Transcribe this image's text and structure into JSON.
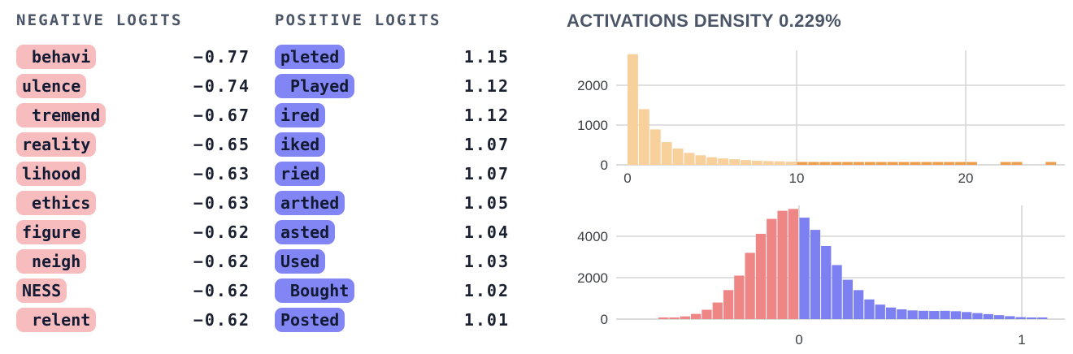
{
  "negative_logits": {
    "header": "NEGATIVE LOGITS",
    "items": [
      {
        "token": " behavi",
        "value": "−0.77"
      },
      {
        "token": "ulence",
        "value": "−0.74"
      },
      {
        "token": " tremend",
        "value": "−0.67"
      },
      {
        "token": "reality",
        "value": "−0.65"
      },
      {
        "token": "lihood",
        "value": "−0.63"
      },
      {
        "token": " ethics",
        "value": "−0.63"
      },
      {
        "token": "figure",
        "value": "−0.62"
      },
      {
        "token": " neigh",
        "value": "−0.62"
      },
      {
        "token": "NESS",
        "value": "−0.62"
      },
      {
        "token": " relent",
        "value": "−0.62"
      }
    ]
  },
  "positive_logits": {
    "header": "POSITIVE LOGITS",
    "items": [
      {
        "token": "pleted",
        "value": "1.15"
      },
      {
        "token": " Played",
        "value": "1.12"
      },
      {
        "token": "ired",
        "value": "1.12"
      },
      {
        "token": "iked",
        "value": "1.07"
      },
      {
        "token": "ried",
        "value": "1.07"
      },
      {
        "token": "arthed",
        "value": "1.05"
      },
      {
        "token": "asted",
        "value": "1.04"
      },
      {
        "token": "Used",
        "value": "1.03"
      },
      {
        "token": " Bought",
        "value": "1.02"
      },
      {
        "token": "Posted",
        "value": "1.01"
      }
    ]
  },
  "activations": {
    "title": "ACTIVATIONS DENSITY 0.229%"
  },
  "colors": {
    "header_text": "#4a5568",
    "token_text": "#121b33",
    "value_text": "#1b2130",
    "negative_pill_bg": "#f6bcbe",
    "positive_pill_bg": "#8285f4",
    "hist_tan": "#f8d09b",
    "hist_orange_tail": "#ef9d4b",
    "hist_red": "#ee8686",
    "hist_blue": "#7c80f1",
    "gridline": "#d6d6d6",
    "axis_line": "#cfcfcf"
  },
  "chart_data": [
    {
      "type": "bar",
      "title": "activation magnitude histogram",
      "x_ticks": [
        0,
        10,
        20
      ],
      "grid_x": [
        10,
        20
      ],
      "y_ticks": [
        0,
        1000,
        2000
      ],
      "xlim": [
        0,
        25.5
      ],
      "ylim": [
        0,
        2900
      ],
      "bin_start": 0,
      "bin_width": 0.67,
      "tail_threshold": 75,
      "values": [
        2780,
        1400,
        890,
        570,
        410,
        300,
        240,
        190,
        160,
        140,
        120,
        105,
        95,
        88,
        80,
        72,
        65,
        60,
        56,
        52,
        50,
        48,
        46,
        45,
        44,
        43,
        42,
        42,
        41,
        40,
        40,
        0,
        0,
        42,
        40,
        0,
        0,
        40
      ]
    },
    {
      "type": "bar",
      "title": "logit weight distribution histogram",
      "x_ticks": [
        0,
        1
      ],
      "grid_x": [
        0,
        1
      ],
      "y_ticks": [
        0,
        2000,
        4000
      ],
      "xlim": [
        -0.68,
        1.2
      ],
      "ylim": [
        0,
        5600
      ],
      "bin_width": 0.0485,
      "series": [
        {
          "name": "negative",
          "values": [
            30,
            70,
            130,
            250,
            450,
            800,
            1400,
            2100,
            3200,
            4120,
            4840,
            5230,
            5320
          ]
        },
        {
          "name": "positive",
          "values": [
            4900,
            4310,
            3530,
            2610,
            1900,
            1400,
            950,
            700,
            560,
            470,
            420,
            400,
            390,
            400,
            380,
            340,
            290,
            240,
            190,
            140,
            95,
            60,
            35
          ]
        }
      ]
    }
  ]
}
